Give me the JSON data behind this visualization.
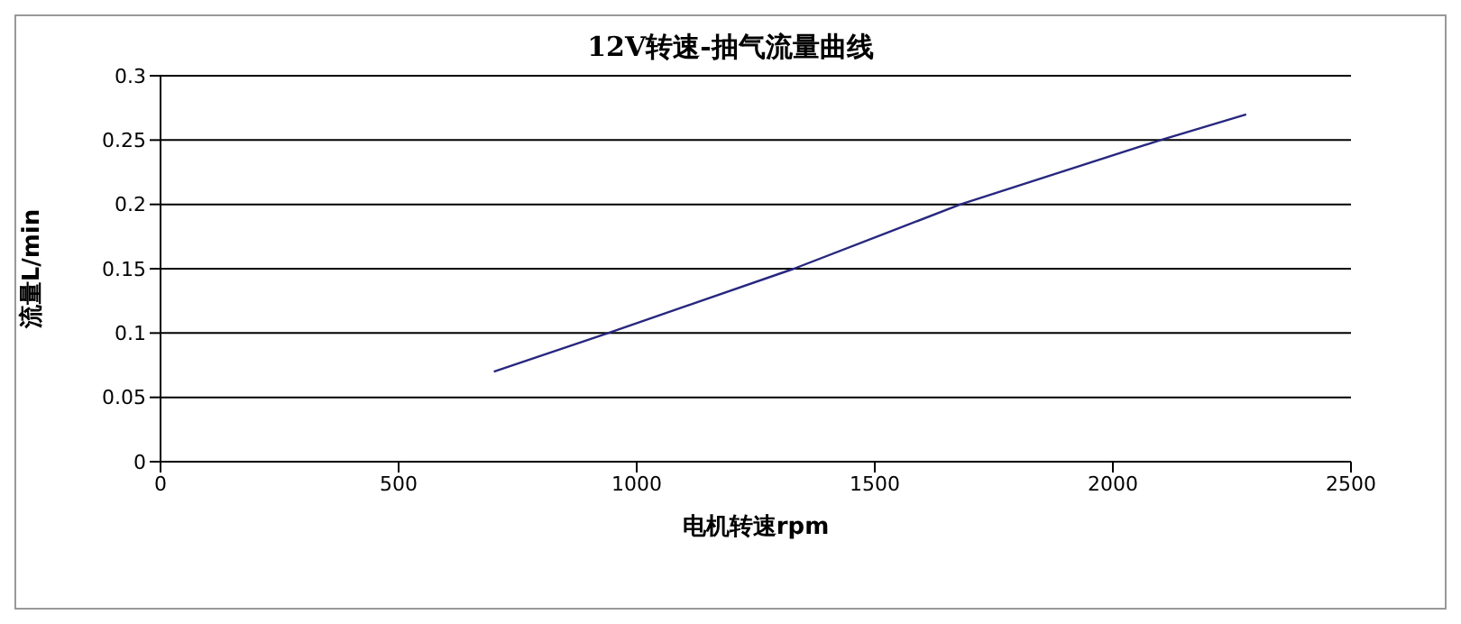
{
  "chart_data": {
    "type": "line",
    "title": "12V转速-抽气流量曲线",
    "xlabel": "电机转速rpm",
    "ylabel": "流量L/min",
    "x": [
      700,
      940,
      1330,
      1680,
      2100,
      2280
    ],
    "series": [
      {
        "color": "#27277f",
        "values": [
          0.07,
          0.1,
          0.15,
          0.2,
          0.25,
          0.27
        ]
      }
    ],
    "xlim": [
      0,
      2500
    ],
    "xticks": [
      0,
      500,
      1000,
      1500,
      2000,
      2500
    ],
    "ylim": [
      0,
      0.3
    ],
    "yticks": [
      0,
      0.05,
      0.1,
      0.15,
      0.2,
      0.25,
      0.3
    ],
    "grid": "y",
    "legend": false,
    "marker": "none",
    "line_style": "solid"
  }
}
